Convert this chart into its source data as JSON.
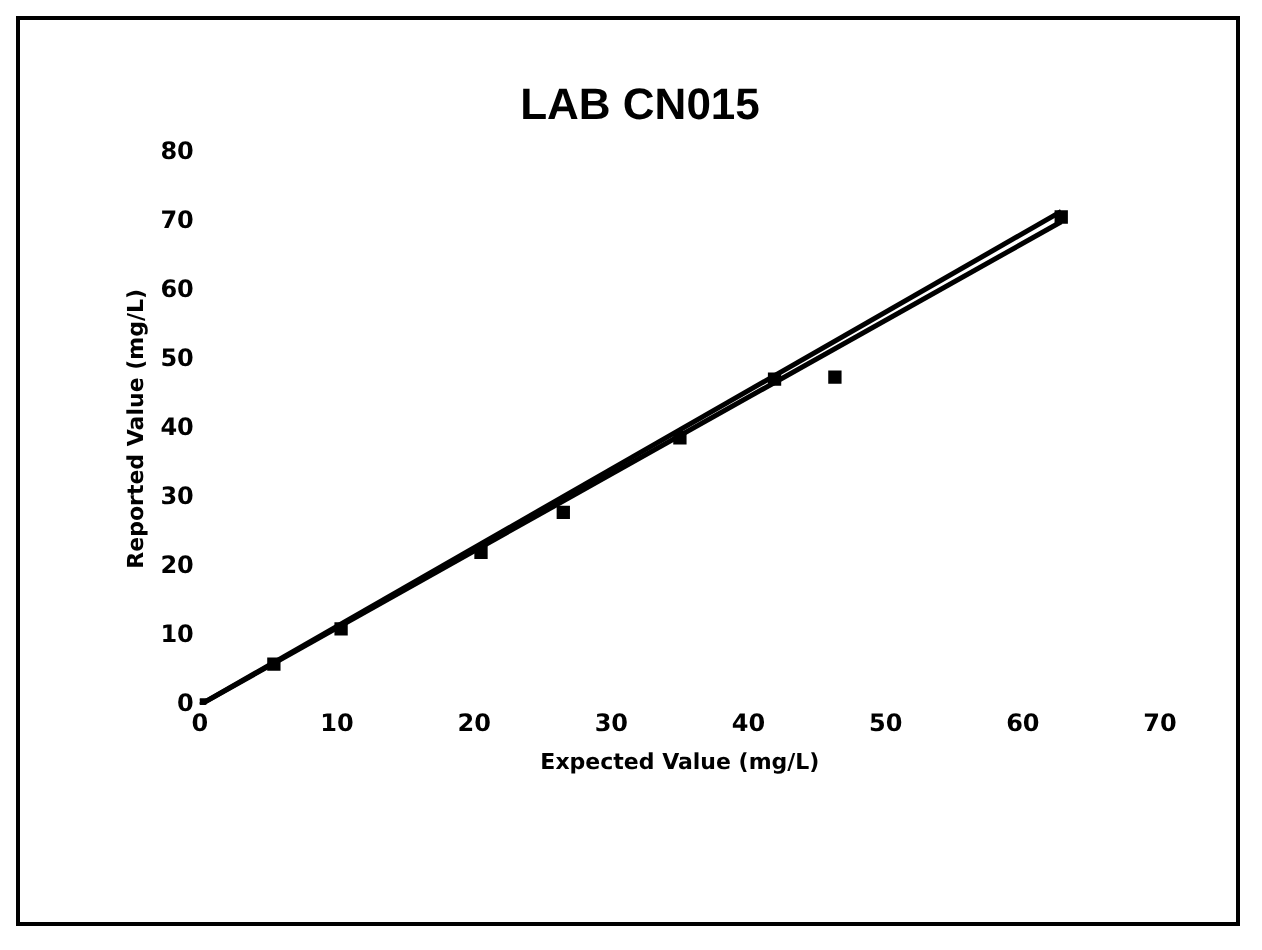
{
  "chart_data": {
    "type": "scatter",
    "title": "LAB CN015",
    "xlabel": "Expected Value (mg/L)",
    "ylabel": "Reported Value (mg/L)",
    "xlim": [
      0,
      70
    ],
    "xticks": [
      0,
      10,
      20,
      30,
      40,
      50,
      60,
      70
    ],
    "ylim": [
      0,
      80
    ],
    "yticks": [
      0,
      10,
      20,
      30,
      40,
      50,
      60,
      70,
      80
    ],
    "grid": false,
    "legend": false,
    "marker": "square",
    "series": [
      {
        "color": "#000000",
        "x": [
          0,
          5.4,
          10.3,
          20.5,
          26.5,
          35,
          41.9,
          46.3,
          62.8
        ],
        "values": [
          0,
          5.9,
          11,
          22.1,
          27.9,
          38.7,
          47.2,
          47.5,
          70.7
        ]
      },
      {
        "type": "line",
        "color": "#000000",
        "marker": "none",
        "x": [
          0,
          62.8
        ],
        "values": [
          0,
          71.5
        ]
      },
      {
        "type": "line",
        "color": "#000000",
        "marker": "none",
        "x": [
          0,
          62.8
        ],
        "values": [
          0,
          70
        ]
      }
    ]
  }
}
